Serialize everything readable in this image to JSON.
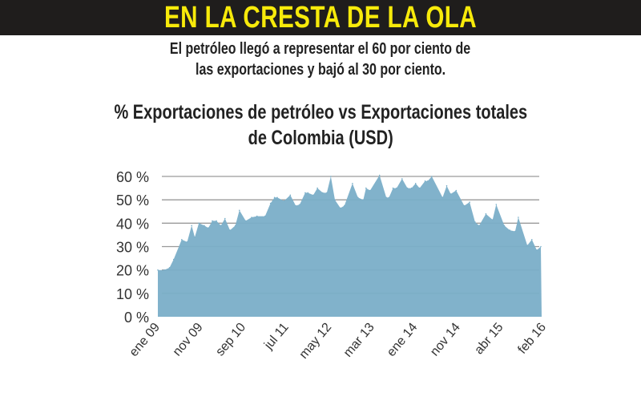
{
  "header": {
    "title": "EN LA CRESTA DE LA OLA"
  },
  "subtitle": {
    "line1": "El petróleo llegó a representar el 60 por ciento de",
    "line2": "las exportaciones y bajó al 30 por ciento."
  },
  "chart_data": {
    "type": "area",
    "title": "% Exportaciones de petróleo vs Exportaciones totales de Colombia (USD)",
    "title_line1": "% Exportaciones de petróleo vs Exportaciones totales",
    "title_line2": "de Colombia (USD)",
    "xlabel": "",
    "ylabel": "",
    "x_unit": "months since ene 09",
    "ylim": [
      0,
      60
    ],
    "yticks": [
      0,
      10,
      20,
      30,
      40,
      50,
      60
    ],
    "ytick_labels": [
      "0 %",
      "10 %",
      "20 %",
      "30 %",
      "40 %",
      "50 %",
      "60 %"
    ],
    "xtick_labels": [
      "ene 09",
      "nov 09",
      "sep 10",
      "jul 11",
      "may 12",
      "mar 13",
      "ene 14",
      "nov 14",
      "abr 15",
      "feb 16"
    ],
    "grid": true,
    "color": "#7aaec8",
    "series": [
      {
        "name": "% exportaciones de petróleo",
        "x": [
          0,
          1.4,
          2.6,
          3.5,
          5.3,
          6.5,
          7.5,
          8.2,
          9.1,
          10.3,
          11.2,
          12.1,
          13,
          14,
          14.9,
          16,
          17.2,
          18.1,
          19.5,
          20.8,
          22,
          23.8,
          25,
          25.9,
          26.5,
          28,
          29.4,
          30.6,
          31.5,
          32.7,
          33.3,
          34.5,
          35.4,
          36.6,
          37.5,
          38.4,
          39.3,
          40.5,
          41.4,
          43.2,
          44.4,
          45.6,
          46.2,
          47.1,
          49.2,
          50.7,
          51.3,
          52.2,
          53,
          54.2,
          55.4,
          56.3,
          57.2,
          58.1,
          59.3,
          59.9,
          60.8,
          63.2,
          64.1,
          65,
          66.2,
          68,
          69.2,
          70.4,
          71.3,
          72.8,
          74.3,
          75.1,
          76.9,
          78.1,
          79.3,
          80,
          82,
          83,
          84.1,
          85
        ],
        "y": [
          20,
          20,
          21,
          24.5,
          33,
          32,
          39,
          34,
          40,
          39,
          38,
          41,
          41,
          39,
          42,
          37,
          39,
          45.5,
          41,
          42.5,
          43,
          43,
          48.5,
          51,
          51,
          49.5,
          52,
          47.5,
          48,
          53,
          53,
          52,
          55,
          53,
          53,
          60,
          50,
          46.5,
          47.5,
          57,
          51,
          50,
          55,
          54,
          60.5,
          51,
          51,
          55,
          55,
          59,
          55,
          55,
          57,
          55,
          58,
          58,
          60,
          51,
          56,
          52.5,
          54,
          47.5,
          49,
          40.5,
          39,
          44,
          41.5,
          48,
          39,
          37,
          36.5,
          42.5,
          30.5,
          33,
          28.5,
          30
        ]
      }
    ]
  }
}
